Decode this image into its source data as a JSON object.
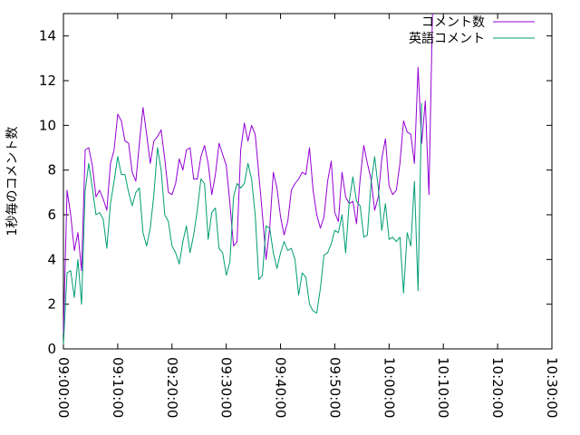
{
  "chart_data": {
    "type": "line",
    "ylabel": "1秒毎のコメント数",
    "xlabel": "",
    "ylim": [
      0,
      15
    ],
    "yticks": [
      0,
      2,
      4,
      6,
      8,
      10,
      12,
      14
    ],
    "xlim": [
      "09:00:00",
      "10:30:00"
    ],
    "xticks": [
      "09:00:00",
      "09:10:00",
      "09:20:00",
      "09:30:00",
      "09:40:00",
      "09:50:00",
      "10:00:00",
      "10:10:00",
      "10:20:00",
      "10:30:00"
    ],
    "legend_position": "top-right",
    "grid": false,
    "series": [
      {
        "name": "コメント数",
        "color": "#9400d3",
        "points": [
          [
            "09:00:00",
            0.7
          ],
          [
            "09:00:40",
            7.1
          ],
          [
            "09:01:20",
            6.0
          ],
          [
            "09:02:00",
            4.4
          ],
          [
            "09:02:40",
            5.2
          ],
          [
            "09:03:20",
            3.5
          ],
          [
            "09:04:00",
            8.9
          ],
          [
            "09:04:40",
            9.0
          ],
          [
            "09:05:20",
            8.2
          ],
          [
            "09:06:00",
            6.8
          ],
          [
            "09:06:40",
            7.1
          ],
          [
            "09:07:20",
            6.7
          ],
          [
            "09:08:00",
            6.2
          ],
          [
            "09:08:40",
            8.3
          ],
          [
            "09:09:20",
            8.9
          ],
          [
            "09:10:00",
            10.5
          ],
          [
            "09:10:40",
            10.2
          ],
          [
            "09:11:20",
            9.3
          ],
          [
            "09:12:00",
            9.2
          ],
          [
            "09:12:40",
            7.9
          ],
          [
            "09:13:20",
            7.5
          ],
          [
            "09:14:00",
            9.2
          ],
          [
            "09:14:40",
            10.8
          ],
          [
            "09:15:20",
            9.6
          ],
          [
            "09:16:00",
            8.3
          ],
          [
            "09:16:40",
            9.3
          ],
          [
            "09:17:20",
            9.5
          ],
          [
            "09:18:00",
            9.8
          ],
          [
            "09:18:40",
            8.5
          ],
          [
            "09:19:20",
            7.0
          ],
          [
            "09:20:00",
            6.9
          ],
          [
            "09:20:40",
            7.4
          ],
          [
            "09:21:20",
            8.5
          ],
          [
            "09:22:00",
            8.0
          ],
          [
            "09:22:40",
            8.9
          ],
          [
            "09:23:20",
            9.0
          ],
          [
            "09:24:00",
            7.6
          ],
          [
            "09:24:40",
            7.6
          ],
          [
            "09:25:20",
            8.6
          ],
          [
            "09:26:00",
            9.1
          ],
          [
            "09:26:40",
            8.3
          ],
          [
            "09:27:20",
            6.9
          ],
          [
            "09:28:00",
            7.8
          ],
          [
            "09:28:40",
            9.2
          ],
          [
            "09:29:20",
            8.7
          ],
          [
            "09:30:00",
            8.2
          ],
          [
            "09:30:40",
            6.5
          ],
          [
            "09:31:20",
            4.6
          ],
          [
            "09:32:00",
            4.8
          ],
          [
            "09:32:40",
            8.9
          ],
          [
            "09:33:20",
            10.1
          ],
          [
            "09:34:00",
            9.3
          ],
          [
            "09:34:40",
            10.0
          ],
          [
            "09:35:20",
            9.6
          ],
          [
            "09:36:00",
            7.8
          ],
          [
            "09:36:40",
            6.0
          ],
          [
            "09:37:20",
            4.0
          ],
          [
            "09:38:00",
            5.4
          ],
          [
            "09:38:40",
            7.9
          ],
          [
            "09:39:20",
            7.2
          ],
          [
            "09:40:00",
            5.9
          ],
          [
            "09:40:40",
            5.1
          ],
          [
            "09:41:20",
            5.7
          ],
          [
            "09:42:00",
            7.1
          ],
          [
            "09:42:40",
            7.4
          ],
          [
            "09:43:20",
            7.6
          ],
          [
            "09:44:00",
            7.9
          ],
          [
            "09:44:40",
            7.8
          ],
          [
            "09:45:20",
            9.0
          ],
          [
            "09:46:00",
            7.1
          ],
          [
            "09:46:40",
            6.0
          ],
          [
            "09:47:20",
            5.4
          ],
          [
            "09:48:00",
            5.9
          ],
          [
            "09:48:40",
            7.5
          ],
          [
            "09:49:20",
            8.4
          ],
          [
            "09:50:00",
            6.1
          ],
          [
            "09:50:40",
            5.7
          ],
          [
            "09:51:20",
            7.9
          ],
          [
            "09:52:00",
            6.8
          ],
          [
            "09:52:40",
            6.5
          ],
          [
            "09:53:20",
            6.6
          ],
          [
            "09:54:00",
            5.6
          ],
          [
            "09:54:40",
            7.6
          ],
          [
            "09:55:20",
            9.1
          ],
          [
            "09:56:00",
            8.3
          ],
          [
            "09:56:40",
            7.6
          ],
          [
            "09:57:20",
            6.2
          ],
          [
            "09:58:00",
            6.8
          ],
          [
            "09:58:40",
            8.5
          ],
          [
            "09:59:20",
            9.4
          ],
          [
            "10:00:00",
            7.3
          ],
          [
            "10:00:40",
            6.9
          ],
          [
            "10:01:20",
            7.1
          ],
          [
            "10:02:00",
            8.3
          ],
          [
            "10:02:40",
            10.2
          ],
          [
            "10:03:20",
            9.7
          ],
          [
            "10:04:00",
            9.6
          ],
          [
            "10:04:40",
            8.3
          ],
          [
            "10:05:20",
            12.6
          ],
          [
            "10:06:00",
            9.2
          ],
          [
            "10:06:40",
            11.1
          ],
          [
            "10:07:20",
            6.9
          ],
          [
            "10:08:00",
            15.0
          ]
        ]
      },
      {
        "name": "英語コメント",
        "color": "#009e73",
        "points": [
          [
            "09:00:00",
            0.2
          ],
          [
            "09:00:40",
            3.4
          ],
          [
            "09:01:20",
            3.5
          ],
          [
            "09:02:00",
            2.3
          ],
          [
            "09:02:40",
            4.0
          ],
          [
            "09:03:20",
            2.0
          ],
          [
            "09:04:00",
            7.1
          ],
          [
            "09:04:40",
            8.3
          ],
          [
            "09:05:20",
            7.2
          ],
          [
            "09:06:00",
            6.0
          ],
          [
            "09:06:40",
            6.1
          ],
          [
            "09:07:20",
            5.8
          ],
          [
            "09:08:00",
            4.5
          ],
          [
            "09:08:40",
            6.5
          ],
          [
            "09:09:20",
            7.5
          ],
          [
            "09:10:00",
            8.6
          ],
          [
            "09:10:40",
            7.8
          ],
          [
            "09:11:20",
            7.8
          ],
          [
            "09:12:00",
            7.0
          ],
          [
            "09:12:40",
            6.4
          ],
          [
            "09:13:20",
            7.0
          ],
          [
            "09:14:00",
            7.2
          ],
          [
            "09:14:40",
            5.2
          ],
          [
            "09:15:20",
            4.6
          ],
          [
            "09:16:00",
            5.4
          ],
          [
            "09:16:40",
            6.9
          ],
          [
            "09:17:20",
            9.0
          ],
          [
            "09:18:00",
            8.0
          ],
          [
            "09:18:40",
            6.0
          ],
          [
            "09:19:20",
            5.7
          ],
          [
            "09:20:00",
            4.6
          ],
          [
            "09:20:40",
            4.3
          ],
          [
            "09:21:20",
            3.8
          ],
          [
            "09:22:00",
            4.8
          ],
          [
            "09:22:40",
            5.5
          ],
          [
            "09:23:20",
            4.3
          ],
          [
            "09:24:00",
            5.1
          ],
          [
            "09:24:40",
            6.2
          ],
          [
            "09:25:20",
            7.6
          ],
          [
            "09:26:00",
            7.4
          ],
          [
            "09:26:40",
            4.9
          ],
          [
            "09:27:20",
            6.1
          ],
          [
            "09:28:00",
            6.3
          ],
          [
            "09:28:40",
            4.5
          ],
          [
            "09:29:20",
            4.3
          ],
          [
            "09:30:00",
            3.3
          ],
          [
            "09:30:40",
            3.9
          ],
          [
            "09:31:20",
            6.8
          ],
          [
            "09:32:00",
            7.4
          ],
          [
            "09:32:40",
            7.2
          ],
          [
            "09:33:20",
            7.4
          ],
          [
            "09:34:00",
            8.3
          ],
          [
            "09:34:40",
            7.6
          ],
          [
            "09:35:20",
            6.0
          ],
          [
            "09:36:00",
            3.1
          ],
          [
            "09:36:40",
            3.3
          ],
          [
            "09:37:20",
            5.5
          ],
          [
            "09:38:00",
            5.4
          ],
          [
            "09:38:40",
            4.3
          ],
          [
            "09:39:20",
            3.6
          ],
          [
            "09:40:00",
            4.3
          ],
          [
            "09:40:40",
            4.8
          ],
          [
            "09:41:20",
            4.4
          ],
          [
            "09:42:00",
            4.5
          ],
          [
            "09:42:40",
            4.0
          ],
          [
            "09:43:20",
            2.4
          ],
          [
            "09:44:00",
            3.4
          ],
          [
            "09:44:40",
            3.2
          ],
          [
            "09:45:20",
            2.0
          ],
          [
            "09:46:00",
            1.7
          ],
          [
            "09:46:40",
            1.6
          ],
          [
            "09:47:20",
            2.7
          ],
          [
            "09:48:00",
            4.2
          ],
          [
            "09:48:40",
            4.3
          ],
          [
            "09:49:20",
            4.7
          ],
          [
            "09:50:00",
            5.3
          ],
          [
            "09:50:40",
            5.2
          ],
          [
            "09:51:20",
            6.0
          ],
          [
            "09:52:00",
            4.3
          ],
          [
            "09:52:40",
            6.6
          ],
          [
            "09:53:20",
            7.7
          ],
          [
            "09:54:00",
            6.6
          ],
          [
            "09:54:40",
            6.4
          ],
          [
            "09:55:20",
            5.0
          ],
          [
            "09:56:00",
            5.1
          ],
          [
            "09:56:40",
            7.4
          ],
          [
            "09:57:20",
            8.6
          ],
          [
            "09:58:00",
            7.2
          ],
          [
            "09:58:40",
            5.3
          ],
          [
            "09:59:20",
            6.5
          ],
          [
            "10:00:00",
            4.9
          ],
          [
            "10:00:40",
            5.0
          ],
          [
            "10:01:20",
            4.8
          ],
          [
            "10:02:00",
            5.0
          ],
          [
            "10:02:40",
            2.5
          ],
          [
            "10:03:20",
            5.2
          ],
          [
            "10:04:00",
            4.6
          ],
          [
            "10:04:40",
            7.5
          ],
          [
            "10:05:20",
            2.6
          ],
          [
            "10:06:00",
            11.0
          ]
        ]
      }
    ]
  }
}
